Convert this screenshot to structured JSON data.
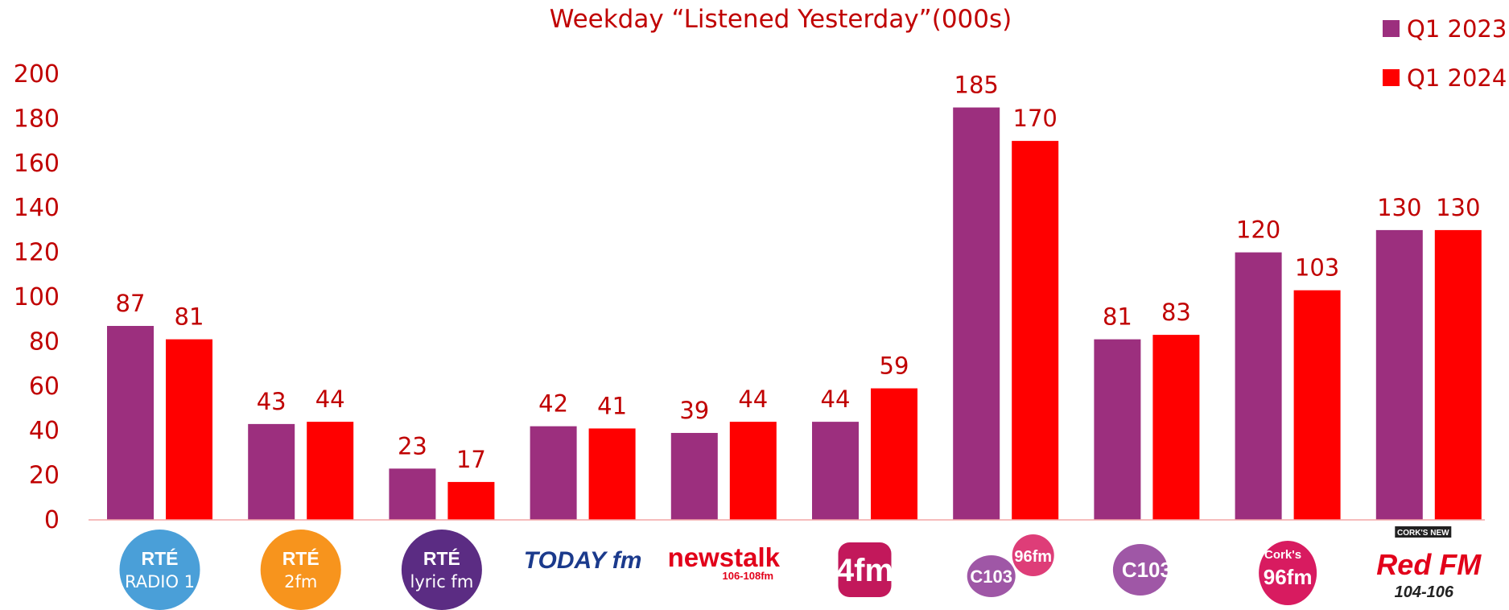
{
  "chart_data": {
    "type": "bar",
    "title": "Weekday “Listened Yesterday”(000s)",
    "categories": [
      "RTÉ RADIO 1",
      "RTÉ 2fm",
      "RTÉ lyric fm",
      "TODAY fm",
      "newstalk",
      "4fm",
      "C103 / 96fm",
      "C103",
      "Cork's 96fm",
      "Cork's New Red FM 104-106"
    ],
    "series": [
      {
        "name": "Q1 2023",
        "color": "#9C2F7E",
        "values": [
          87,
          43,
          23,
          42,
          39,
          44,
          185,
          81,
          120,
          130
        ]
      },
      {
        "name": "Q1 2024",
        "color": "#FF0000",
        "values": [
          81,
          44,
          17,
          41,
          44,
          59,
          170,
          83,
          103,
          130
        ]
      }
    ],
    "ylim": [
      0,
      200
    ],
    "yticks": [
      0,
      20,
      40,
      60,
      80,
      100,
      120,
      140,
      160,
      180,
      200
    ],
    "grid": false,
    "legend": "top-right"
  },
  "logos": [
    {
      "icon": "rte-radio-1-logo",
      "lines": [
        "RTÉ",
        "RADIO 1"
      ],
      "color": "#4A9FD8"
    },
    {
      "icon": "rte-2fm-logo",
      "lines": [
        "RTÉ",
        "2fm"
      ],
      "color": "#F7941D"
    },
    {
      "icon": "rte-lyric-fm-logo",
      "lines": [
        "RTÉ",
        "lyric fm"
      ],
      "color": "#5B2C83"
    },
    {
      "icon": "today-fm-logo",
      "lines": [
        "TODAY fm"
      ],
      "color": "#1B3A8C"
    },
    {
      "icon": "newstalk-logo",
      "lines": [
        "newstalk",
        "106-108fm"
      ],
      "color": "#E2001A"
    },
    {
      "icon": "4fm-logo",
      "lines": [
        "4fm"
      ],
      "color": "#C2185B"
    },
    {
      "icon": "c103-96fm-logo",
      "lines": [
        "C103",
        "96fm"
      ],
      "color": "#8E3A96"
    },
    {
      "icon": "c103-logo",
      "lines": [
        "C103"
      ],
      "color": "#8E3A96"
    },
    {
      "icon": "corks-96fm-logo",
      "lines": [
        "Cork's",
        "96fm"
      ],
      "color": "#D81B60"
    },
    {
      "icon": "red-fm-logo",
      "lines": [
        "CORK'S NEW",
        "Red FM",
        "104-106"
      ],
      "color": "#E2001A"
    }
  ]
}
